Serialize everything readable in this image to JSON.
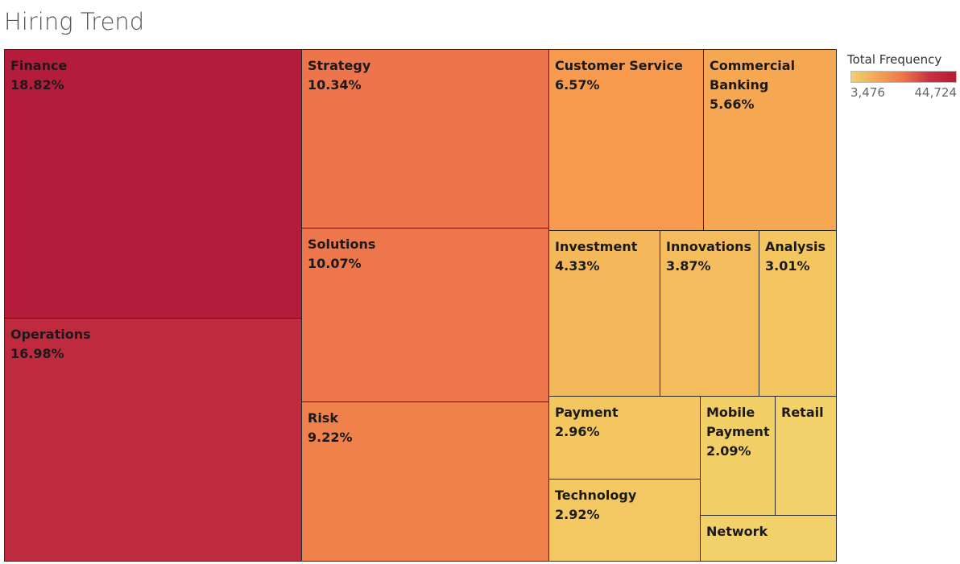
{
  "chart_data": {
    "type": "treemap",
    "title": "Hiring Trend",
    "value_format": "percent",
    "color_scale": {
      "title": "Total Frequency",
      "min": 3476,
      "max": 44724,
      "min_label": "3,476",
      "max_label": "44,724",
      "colors": [
        "#f2d16b",
        "#f3a552",
        "#ee7449",
        "#c9303f",
        "#b41b3a"
      ]
    },
    "tiles": [
      {
        "name": "Finance",
        "value": 18.82,
        "value_label": "18.82%",
        "color": "#b51c3b"
      },
      {
        "name": "Operations",
        "value": 16.98,
        "value_label": "16.98%",
        "color": "#bf2a3e"
      },
      {
        "name": "Strategy",
        "value": 10.34,
        "value_label": "10.34%",
        "color": "#ed744b"
      },
      {
        "name": "Solutions",
        "value": 10.07,
        "value_label": "10.07%",
        "color": "#ee764c"
      },
      {
        "name": "Risk",
        "value": 9.22,
        "value_label": "9.22%",
        "color": "#f1814a"
      },
      {
        "name": "Customer Service",
        "value": 6.57,
        "value_label": "6.57%",
        "color": "#f79a4d"
      },
      {
        "name": "Commercial Banking",
        "value": 5.66,
        "value_label": "5.66%",
        "color": "#f6a751"
      },
      {
        "name": "Investment",
        "value": 4.33,
        "value_label": "4.33%",
        "color": "#f4b85a"
      },
      {
        "name": "Innovations",
        "value": 3.87,
        "value_label": "3.87%",
        "color": "#f4bc5c"
      },
      {
        "name": "Analysis",
        "value": 3.01,
        "value_label": "3.01%",
        "color": "#f3c65f"
      },
      {
        "name": "Payment",
        "value": 2.96,
        "value_label": "2.96%",
        "color": "#f3c660"
      },
      {
        "name": "Technology",
        "value": 2.92,
        "value_label": "2.92%",
        "color": "#f3c761"
      },
      {
        "name": "Mobile Payment",
        "value": 2.09,
        "value_label": "2.09%",
        "color": "#f2cf66"
      },
      {
        "name": "Retail",
        "value": null,
        "value_label": "",
        "color": "#f2d06a"
      },
      {
        "name": "Network",
        "value": null,
        "value_label": "",
        "color": "#f2d16b"
      }
    ]
  }
}
